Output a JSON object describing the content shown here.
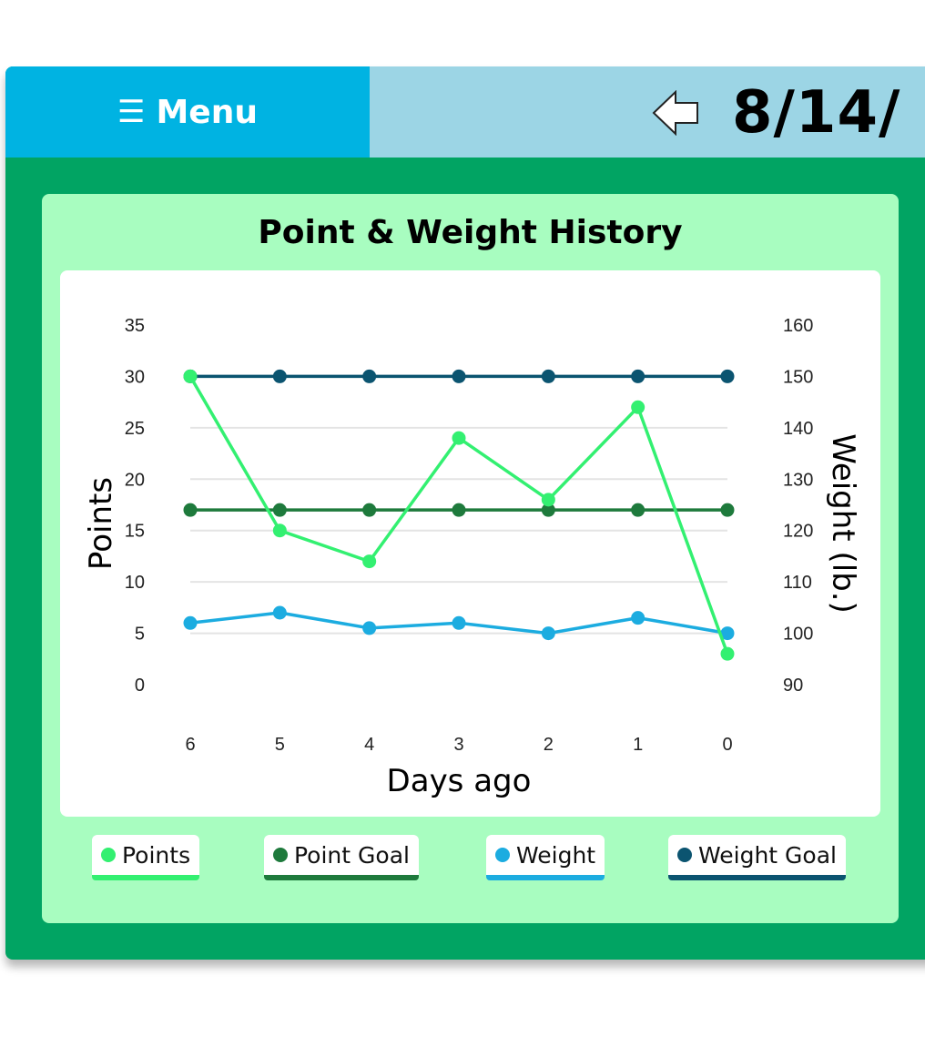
{
  "header": {
    "menu_icon": "☰",
    "menu_label": "Menu",
    "date_text": "8/14/"
  },
  "card": {
    "title": "Point & Weight History"
  },
  "colors": {
    "points": "#33f071",
    "point_goal": "#1e7a3c",
    "weight": "#1cace0",
    "weight_goal": "#0b5470"
  },
  "legend": [
    {
      "label": "Points",
      "color": "#33f071"
    },
    {
      "label": "Point Goal",
      "color": "#1e7a3c"
    },
    {
      "label": "Weight",
      "color": "#1cace0"
    },
    {
      "label": "Weight Goal",
      "color": "#0b5470"
    }
  ],
  "chart_data": {
    "type": "line",
    "xlabel": "Days ago",
    "ylabel": "Points",
    "y2label": "Weight (lb.)",
    "x": [
      6,
      5,
      4,
      3,
      2,
      1,
      0
    ],
    "ylim": [
      0,
      35
    ],
    "y2lim": [
      90,
      160
    ],
    "yticks": [
      35,
      30,
      25,
      20,
      15,
      10,
      5,
      0
    ],
    "y2ticks": [
      160,
      150,
      140,
      130,
      120,
      110,
      100,
      90
    ],
    "grid": true,
    "series": [
      {
        "name": "Points",
        "axis": "left",
        "values": [
          30,
          15,
          12,
          24,
          18,
          27,
          3
        ]
      },
      {
        "name": "Point Goal",
        "axis": "left",
        "values": [
          17,
          17,
          17,
          17,
          17,
          17,
          17
        ]
      },
      {
        "name": "Weight",
        "axis": "right",
        "values": [
          102,
          104,
          101,
          102,
          100,
          103,
          100
        ]
      },
      {
        "name": "Weight Goal",
        "axis": "right",
        "values": [
          150,
          150,
          150,
          150,
          150,
          150,
          150
        ]
      }
    ]
  }
}
